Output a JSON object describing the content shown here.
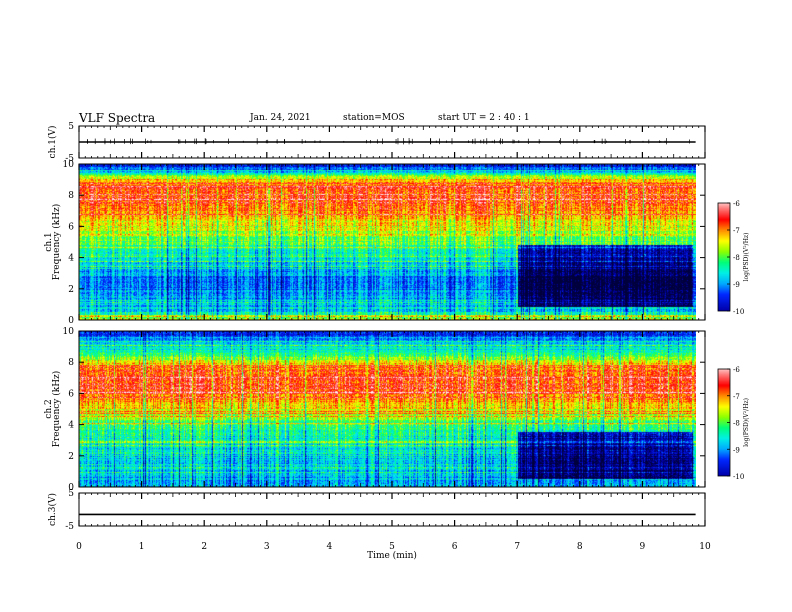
{
  "header": {
    "title": "VLF Spectra",
    "date": "Jan. 24, 2021",
    "station": "station=MOS",
    "start_ut": "start UT =  2 : 40 : 1"
  },
  "colors": {
    "trace": "#000000",
    "colormap": [
      "#000040",
      "#0000ff",
      "#00bfff",
      "#00ff80",
      "#ffff00",
      "#ff0000",
      "#ffffff"
    ]
  },
  "chart_data": [
    {
      "id": "ch1_waveform",
      "type": "line",
      "ylabel": "ch.1(V)",
      "ylim": [
        -5,
        5
      ],
      "yticks": [
        "5",
        "-5"
      ],
      "xlim": [
        0,
        10
      ],
      "series": [
        {
          "x": [
            0,
            9.85
          ],
          "y": [
            0,
            0
          ]
        }
      ]
    },
    {
      "id": "ch1_spectrogram",
      "type": "heatmap",
      "ylabel": "ch.1 Frequency (kHz)",
      "ylim": [
        0,
        10
      ],
      "yticks": [
        "0",
        "2",
        "4",
        "6",
        "8",
        "10"
      ],
      "xlim": [
        0,
        10
      ],
      "data_xmax": 9.85,
      "colorbar": {
        "label": "log(PSD)(V²/Hz)",
        "range": [
          -10,
          -6
        ],
        "ticks": [
          "-6",
          "-7",
          "-8",
          "-9",
          "-10"
        ]
      },
      "profile_khz": [
        0,
        0.5,
        1,
        1.5,
        2,
        2.5,
        3,
        3.5,
        4,
        4.5,
        5,
        5.5,
        6,
        6.5,
        7,
        7.5,
        8,
        8.5,
        9,
        9.5,
        10
      ],
      "profile_log_psd": [
        -7.5,
        -8.6,
        -8.8,
        -9.0,
        -9.1,
        -9.2,
        -8.9,
        -8.8,
        -8.6,
        -8.3,
        -8.0,
        -7.7,
        -7.5,
        -7.3,
        -6.9,
        -6.8,
        -6.7,
        -6.7,
        -7.1,
        -8.8,
        -9.6
      ],
      "quiet_interval_min": [
        7.0,
        9.8
      ],
      "quiet_band_khz": [
        0.8,
        4.8
      ]
    },
    {
      "id": "ch2_spectrogram",
      "type": "heatmap",
      "ylabel": "ch.2 Frequency (kHz)",
      "ylim": [
        0,
        10
      ],
      "yticks": [
        "0",
        "2",
        "4",
        "6",
        "8",
        "10"
      ],
      "xlim": [
        0,
        10
      ],
      "data_xmax": 9.85,
      "colorbar": {
        "label": "log(PSD)(V²/Hz)",
        "range": [
          -10,
          -6
        ],
        "ticks": [
          "-6",
          "-7",
          "-8",
          "-9",
          "-10"
        ]
      },
      "profile_khz": [
        0,
        0.5,
        1,
        1.5,
        2,
        2.5,
        3,
        3.5,
        4,
        4.5,
        5,
        5.5,
        6,
        6.5,
        7,
        7.5,
        8,
        8.5,
        9,
        9.5,
        10
      ],
      "profile_log_psd": [
        -9.0,
        -8.9,
        -8.7,
        -8.7,
        -8.6,
        -8.5,
        -8.4,
        -8.3,
        -8.1,
        -7.8,
        -7.4,
        -7.0,
        -6.7,
        -6.6,
        -6.6,
        -6.8,
        -7.3,
        -8.0,
        -8.7,
        -9.1,
        -9.5
      ],
      "quiet_interval_min": [
        7.0,
        9.8
      ],
      "quiet_band_khz": [
        0.5,
        3.5
      ]
    },
    {
      "id": "ch3_waveform",
      "type": "line",
      "ylabel": "ch.3(V)",
      "ylim": [
        -5,
        5
      ],
      "yticks": [
        "5",
        "-5"
      ],
      "xlim": [
        0,
        10
      ],
      "xlabel": "Time (min)",
      "xticks": [
        "0",
        "1",
        "2",
        "3",
        "4",
        "5",
        "6",
        "7",
        "8",
        "9",
        "10"
      ],
      "series": [
        {
          "x": [
            0,
            9.85
          ],
          "y": [
            -1.5,
            -1.5
          ]
        }
      ]
    }
  ]
}
